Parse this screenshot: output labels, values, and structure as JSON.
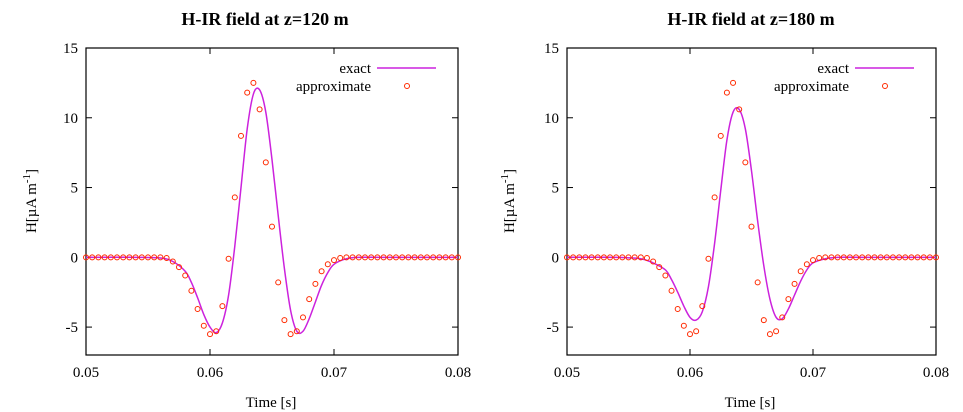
{
  "chart_data": [
    {
      "type": "line",
      "title": "H-IR field at z=120 m",
      "xlabel": "Time [s]",
      "ylabel": "H[µA m",
      "ylabel_sup": "-1",
      "ylabel_close": "]",
      "xlim": [
        0.05,
        0.08
      ],
      "ylim": [
        -7,
        15
      ],
      "xticks": [
        0.05,
        0.06,
        0.07,
        0.08
      ],
      "xtick_labels": [
        "0.05",
        "0.06",
        "0.07",
        "0.08"
      ],
      "yticks": [
        -5,
        0,
        5,
        10,
        15
      ],
      "ytick_labels": [
        "-5",
        "0",
        "5",
        "10",
        "15"
      ],
      "grid": false,
      "legend_position": "top-right",
      "colors": {
        "exact": "#cc22dd",
        "approximate": "#ff2a00"
      },
      "series": [
        {
          "name": "exact",
          "style": "line",
          "x": [
            0.05,
            0.054,
            0.056,
            0.057,
            0.058,
            0.0585,
            0.059,
            0.0595,
            0.06,
            0.0605,
            0.061,
            0.0615,
            0.062,
            0.0625,
            0.063,
            0.0635,
            0.064,
            0.0645,
            0.065,
            0.0655,
            0.066,
            0.0665,
            0.067,
            0.0675,
            0.068,
            0.0685,
            0.069,
            0.0695,
            0.07,
            0.071,
            0.072,
            0.074,
            0.08
          ],
          "y": [
            0,
            0,
            -0.05,
            -0.3,
            -1.0,
            -1.8,
            -2.9,
            -4.1,
            -5.0,
            -5.4,
            -4.7,
            -2.7,
            0.8,
            5.0,
            9.2,
            11.7,
            12.0,
            10.4,
            7.0,
            3.0,
            -0.8,
            -3.8,
            -5.3,
            -5.3,
            -4.4,
            -3.2,
            -2.0,
            -1.1,
            -0.5,
            -0.1,
            0,
            0,
            0
          ]
        },
        {
          "name": "approximate",
          "style": "points",
          "x": [
            0.05,
            0.0505,
            0.051,
            0.0515,
            0.052,
            0.0525,
            0.053,
            0.0535,
            0.054,
            0.0545,
            0.055,
            0.0555,
            0.056,
            0.0565,
            0.057,
            0.0575,
            0.058,
            0.0585,
            0.059,
            0.0595,
            0.06,
            0.0605,
            0.061,
            0.0615,
            0.062,
            0.0625,
            0.063,
            0.0635,
            0.064,
            0.0645,
            0.065,
            0.0655,
            0.066,
            0.0665,
            0.067,
            0.0675,
            0.068,
            0.0685,
            0.069,
            0.0695,
            0.07,
            0.0705,
            0.071,
            0.0715,
            0.072,
            0.0725,
            0.073,
            0.0735,
            0.074,
            0.0745,
            0.075,
            0.0755,
            0.076,
            0.0765,
            0.077,
            0.0775,
            0.078,
            0.0785,
            0.079,
            0.0795,
            0.08
          ],
          "y": [
            0,
            0,
            0,
            0,
            0,
            0,
            0,
            0,
            0,
            0,
            0,
            0,
            0,
            -0.05,
            -0.3,
            -0.7,
            -1.3,
            -2.4,
            -3.7,
            -4.9,
            -5.5,
            -5.3,
            -3.5,
            -0.1,
            4.3,
            8.7,
            11.8,
            12.5,
            10.6,
            6.8,
            2.2,
            -1.8,
            -4.5,
            -5.5,
            -5.3,
            -4.3,
            -3.0,
            -1.9,
            -1.0,
            -0.5,
            -0.2,
            -0.05,
            0,
            0,
            0,
            0,
            0,
            0,
            0,
            0,
            0,
            0,
            0,
            0,
            0,
            0,
            0,
            0,
            0,
            0,
            0
          ]
        }
      ]
    },
    {
      "type": "line",
      "title": "H-IR field at z=180 m",
      "xlabel": "Time [s]",
      "ylabel": "H[µA m",
      "ylabel_sup": "-1",
      "ylabel_close": "]",
      "xlim": [
        0.05,
        0.08
      ],
      "ylim": [
        -7,
        15
      ],
      "xticks": [
        0.05,
        0.06,
        0.07,
        0.08
      ],
      "xtick_labels": [
        "0.05",
        "0.06",
        "0.07",
        "0.08"
      ],
      "yticks": [
        -5,
        0,
        5,
        10,
        15
      ],
      "ytick_labels": [
        "-5",
        "0",
        "5",
        "10",
        "15"
      ],
      "grid": false,
      "legend_position": "top-right",
      "colors": {
        "exact": "#cc22dd",
        "approximate": "#ff2a00"
      },
      "series": [
        {
          "name": "exact",
          "style": "line",
          "x": [
            0.05,
            0.054,
            0.056,
            0.057,
            0.058,
            0.0585,
            0.059,
            0.0595,
            0.06,
            0.0605,
            0.061,
            0.0615,
            0.062,
            0.0625,
            0.063,
            0.0635,
            0.064,
            0.0645,
            0.065,
            0.0655,
            0.066,
            0.0665,
            0.067,
            0.0675,
            0.068,
            0.0685,
            0.069,
            0.0695,
            0.07,
            0.071,
            0.072,
            0.074,
            0.08
          ],
          "y": [
            0,
            0,
            -0.1,
            -0.4,
            -0.9,
            -1.6,
            -2.5,
            -3.5,
            -4.3,
            -4.5,
            -3.9,
            -2.1,
            1.0,
            4.8,
            8.4,
            10.4,
            10.6,
            9.2,
            6.2,
            2.6,
            -0.6,
            -3.0,
            -4.3,
            -4.4,
            -3.7,
            -2.7,
            -1.7,
            -0.9,
            -0.4,
            -0.1,
            0,
            0,
            0
          ]
        },
        {
          "name": "approximate",
          "style": "points",
          "x": [
            0.05,
            0.0505,
            0.051,
            0.0515,
            0.052,
            0.0525,
            0.053,
            0.0535,
            0.054,
            0.0545,
            0.055,
            0.0555,
            0.056,
            0.0565,
            0.057,
            0.0575,
            0.058,
            0.0585,
            0.059,
            0.0595,
            0.06,
            0.0605,
            0.061,
            0.0615,
            0.062,
            0.0625,
            0.063,
            0.0635,
            0.064,
            0.0645,
            0.065,
            0.0655,
            0.066,
            0.0665,
            0.067,
            0.0675,
            0.068,
            0.0685,
            0.069,
            0.0695,
            0.07,
            0.0705,
            0.071,
            0.0715,
            0.072,
            0.0725,
            0.073,
            0.0735,
            0.074,
            0.0745,
            0.075,
            0.0755,
            0.076,
            0.0765,
            0.077,
            0.0775,
            0.078,
            0.0785,
            0.079,
            0.0795,
            0.08
          ],
          "y": [
            0,
            0,
            0,
            0,
            0,
            0,
            0,
            0,
            0,
            0,
            0,
            0,
            0,
            -0.05,
            -0.3,
            -0.7,
            -1.3,
            -2.4,
            -3.7,
            -4.9,
            -5.5,
            -5.3,
            -3.5,
            -0.1,
            4.3,
            8.7,
            11.8,
            12.5,
            10.6,
            6.8,
            2.2,
            -1.8,
            -4.5,
            -5.5,
            -5.3,
            -4.3,
            -3.0,
            -1.9,
            -1.0,
            -0.5,
            -0.2,
            -0.05,
            0,
            0,
            0,
            0,
            0,
            0,
            0,
            0,
            0,
            0,
            0,
            0,
            0,
            0,
            0,
            0,
            0,
            0,
            0
          ]
        }
      ]
    }
  ]
}
